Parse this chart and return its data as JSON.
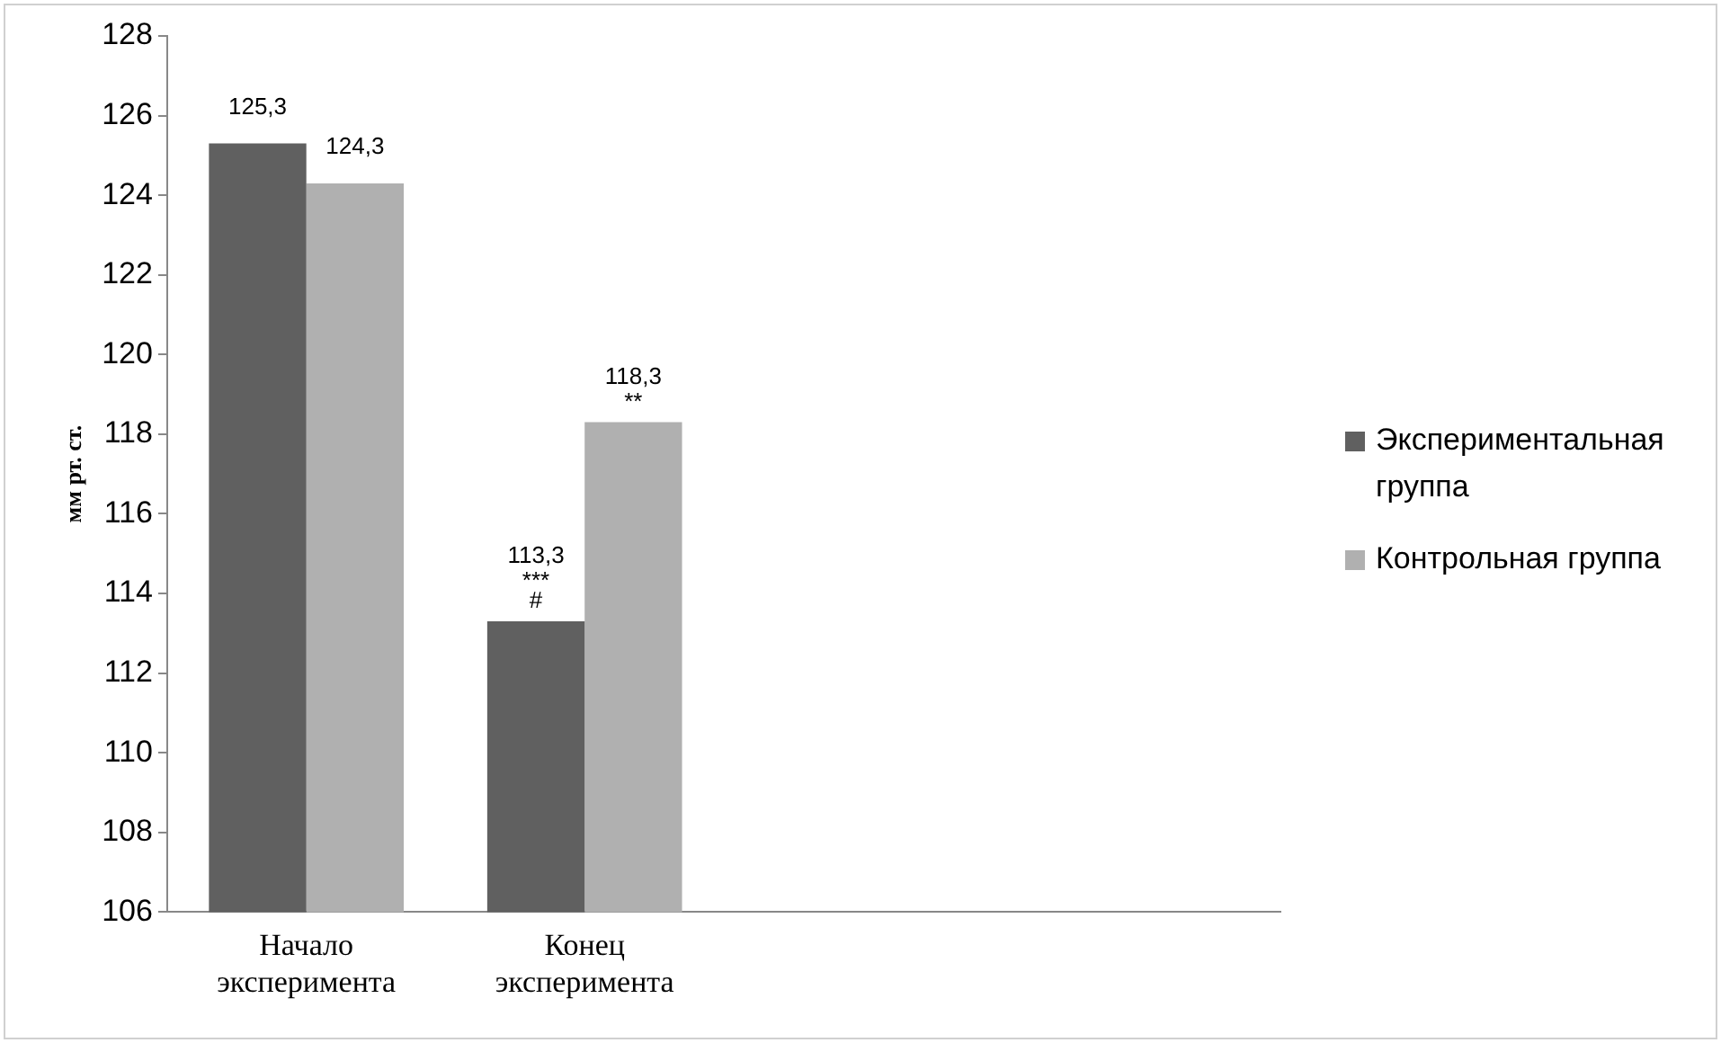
{
  "chart_data": {
    "type": "bar",
    "ylabel": "мм рт. ст.",
    "categories": [
      "Начало эксперимента",
      "Конец эксперимента",
      null,
      null
    ],
    "series": [
      {
        "name": "Экспериментальная группа",
        "color": "#606060",
        "values": [
          125.3,
          113.3,
          null,
          null
        ],
        "value_labels": [
          "125,3",
          "113,3",
          null,
          null
        ]
      },
      {
        "name": "Контрольная группа",
        "color": "#b0b0b0",
        "values": [
          124.3,
          118.3,
          null,
          null
        ],
        "value_labels": [
          "124,3",
          "118,3",
          null,
          null
        ]
      }
    ],
    "annotations": [
      {
        "text": "#",
        "x": "Конец эксперимента",
        "y": 113.3
      },
      {
        "text": "***",
        "x": "Конец эксперимента",
        "y": 113.3
      },
      {
        "text": "**",
        "x": "Конец эксперимента",
        "y": 118.3
      }
    ],
    "ylim": [
      106,
      128
    ],
    "yticks": [
      106,
      108,
      110,
      112,
      114,
      116,
      118,
      120,
      122,
      124,
      126,
      128
    ],
    "grid": false,
    "legend": "right"
  }
}
